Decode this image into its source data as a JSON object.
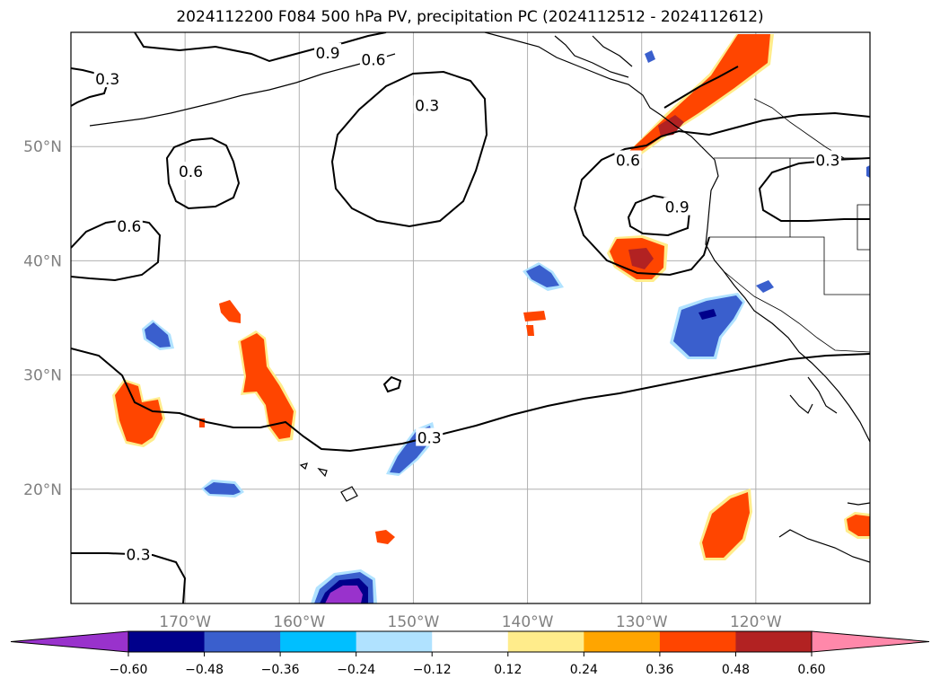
{
  "title": "2024112200 F084 500 hPa PV, precipitation PC (2024112512 - 2024112612)",
  "colors": {
    "background": "#ffffff",
    "grid": "#b0b0b0",
    "coast": "#000000",
    "axis_label": "#808080"
  },
  "map": {
    "projection": "PlateCarree",
    "lon_range": [
      -180,
      -110
    ],
    "lat_range": [
      10,
      60
    ],
    "gridlines": true,
    "lat_labels": [
      {
        "value": 20,
        "text": "20°N"
      },
      {
        "value": 30,
        "text": "30°N"
      },
      {
        "value": 40,
        "text": "40°N"
      },
      {
        "value": 50,
        "text": "50°N"
      }
    ],
    "lon_labels": [
      {
        "value": -170,
        "text": "170°W"
      },
      {
        "value": -160,
        "text": "160°W"
      },
      {
        "value": -150,
        "text": "150°W"
      },
      {
        "value": -140,
        "text": "140°W"
      },
      {
        "value": -130,
        "text": "130°W"
      },
      {
        "value": -120,
        "text": "120°W"
      }
    ]
  },
  "pv_contours": {
    "color": "#000000",
    "labels": [
      {
        "text": "0.9",
        "lon": -157.5,
        "lat": 58.2
      },
      {
        "text": "0.6",
        "lon": -153.5,
        "lat": 57.6
      },
      {
        "text": "0.3",
        "lon": -176.8,
        "lat": 55.9
      },
      {
        "text": "0.3",
        "lon": -148.8,
        "lat": 53.6
      },
      {
        "text": "0.6",
        "lon": -169.5,
        "lat": 47.8
      },
      {
        "text": "0.6",
        "lon": -174.9,
        "lat": 43.0
      },
      {
        "text": "0.6",
        "lon": -131.2,
        "lat": 48.8
      },
      {
        "text": "0.9",
        "lon": -126.9,
        "lat": 44.7
      },
      {
        "text": "0.3",
        "lon": -113.7,
        "lat": 48.8
      },
      {
        "text": "0.3",
        "lon": -148.6,
        "lat": 24.5
      },
      {
        "text": "0.3",
        "lon": -174.1,
        "lat": 14.3
      }
    ]
  },
  "precip_pc_levels": [
    -0.6,
    -0.48,
    -0.36,
    -0.24,
    -0.12,
    0.12,
    0.24,
    0.36,
    0.48,
    0.6
  ],
  "colorbar": {
    "colors": [
      "#9932cc",
      "#00008b",
      "#3a5fcd",
      "#00bfff",
      "#b0e2ff",
      "#ffffff",
      "#ffec8b",
      "#ffa500",
      "#ff4500",
      "#b22222",
      "#ff88aa"
    ],
    "under_color": "#9932cc",
    "over_color": "#ff88aa",
    "tick_labels": [
      "−0.60",
      "−0.48",
      "−0.36",
      "−0.24",
      "−0.12",
      "0.12",
      "0.24",
      "0.36",
      "0.48",
      "0.60"
    ],
    "extend": "both"
  }
}
